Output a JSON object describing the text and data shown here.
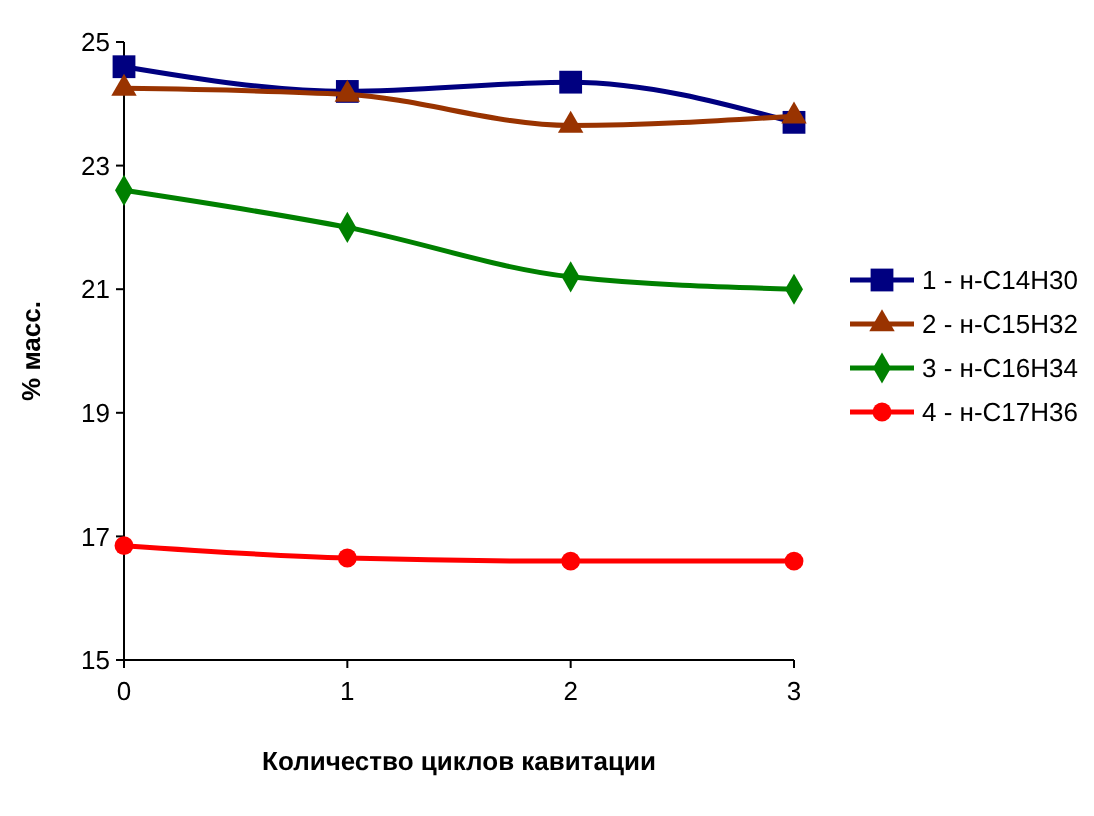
{
  "chart_data": {
    "type": "line",
    "xlabel": "Количество циклов кавитации",
    "ylabel": "% масс.",
    "x": [
      0,
      1,
      2,
      3
    ],
    "xlim": [
      0,
      3
    ],
    "xticks": [
      0,
      1,
      2,
      3
    ],
    "ylim": [
      15,
      25
    ],
    "yticks": [
      15,
      17,
      19,
      21,
      23,
      25
    ],
    "grid": false,
    "legend": "right",
    "series": [
      {
        "name": "1 - н-C14H30",
        "color": "#000080",
        "marker": "square",
        "values": [
          24.6,
          24.2,
          24.35,
          23.7
        ]
      },
      {
        "name": "2 - н-C15H32",
        "color": "#993300",
        "marker": "triangle",
        "values": [
          24.25,
          24.15,
          23.65,
          23.8
        ]
      },
      {
        "name": "3 - н-C16H34",
        "color": "#008000",
        "marker": "diamond",
        "values": [
          22.6,
          22.0,
          21.2,
          21.0
        ]
      },
      {
        "name": "4 - н-C17H36",
        "color": "#ff0000",
        "marker": "circle",
        "values": [
          16.85,
          16.65,
          16.6,
          16.6
        ]
      }
    ]
  }
}
